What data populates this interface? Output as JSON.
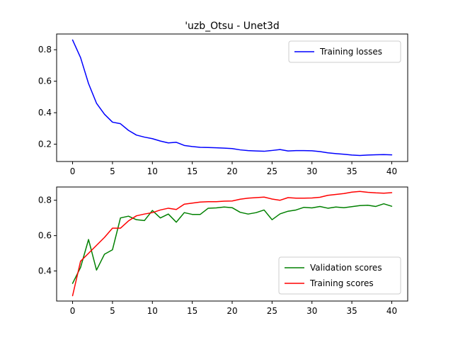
{
  "chart_data": [
    {
      "type": "line",
      "title": "'uzb_Otsu - Unet3d",
      "xlabel": "",
      "ylabel": "",
      "xlim": [
        -2,
        42
      ],
      "ylim": [
        0.09,
        0.9
      ],
      "xticks": [
        0,
        5,
        10,
        15,
        20,
        25,
        30,
        35,
        40
      ],
      "yticks": [
        0.2,
        0.4,
        0.6,
        0.8
      ],
      "ytick_labels": [
        "0.2",
        "0.4",
        "0.6",
        "0.8"
      ],
      "legend_position": "upper-right",
      "grid": false,
      "series": [
        {
          "name": "Training losses",
          "color": "#0000ff",
          "x": [
            0,
            1,
            2,
            3,
            4,
            5,
            6,
            7,
            8,
            9,
            10,
            11,
            12,
            13,
            14,
            15,
            16,
            17,
            18,
            19,
            20,
            21,
            22,
            23,
            24,
            25,
            26,
            27,
            28,
            29,
            30,
            31,
            32,
            33,
            34,
            35,
            36,
            37,
            38,
            39,
            40
          ],
          "values": [
            0.862,
            0.75,
            0.585,
            0.46,
            0.39,
            0.34,
            0.33,
            0.288,
            0.258,
            0.245,
            0.235,
            0.22,
            0.208,
            0.212,
            0.192,
            0.185,
            0.18,
            0.179,
            0.177,
            0.175,
            0.172,
            0.164,
            0.159,
            0.157,
            0.155,
            0.16,
            0.166,
            0.157,
            0.159,
            0.159,
            0.158,
            0.153,
            0.145,
            0.14,
            0.136,
            0.131,
            0.128,
            0.131,
            0.133,
            0.134,
            0.132
          ]
        }
      ]
    },
    {
      "type": "line",
      "title": "",
      "xlabel": "",
      "ylabel": "",
      "xlim": [
        -2,
        42
      ],
      "ylim": [
        0.23,
        0.875
      ],
      "xticks": [
        0,
        5,
        10,
        15,
        20,
        25,
        30,
        35,
        40
      ],
      "yticks": [
        0.4,
        0.6,
        0.8
      ],
      "ytick_labels": [
        "0.4",
        "0.6",
        "0.8"
      ],
      "legend_position": "lower-right",
      "grid": false,
      "series": [
        {
          "name": "Validation scores",
          "color": "#008000",
          "x": [
            0,
            1,
            2,
            3,
            4,
            5,
            6,
            7,
            8,
            9,
            10,
            11,
            12,
            13,
            14,
            15,
            16,
            17,
            18,
            19,
            20,
            21,
            22,
            23,
            24,
            25,
            26,
            27,
            28,
            29,
            30,
            31,
            32,
            33,
            34,
            35,
            36,
            37,
            38,
            39,
            40
          ],
          "values": [
            0.33,
            0.42,
            0.578,
            0.405,
            0.495,
            0.52,
            0.7,
            0.71,
            0.69,
            0.685,
            0.742,
            0.7,
            0.722,
            0.676,
            0.73,
            0.72,
            0.72,
            0.755,
            0.757,
            0.762,
            0.758,
            0.732,
            0.722,
            0.73,
            0.745,
            0.69,
            0.723,
            0.738,
            0.745,
            0.76,
            0.757,
            0.765,
            0.755,
            0.762,
            0.758,
            0.764,
            0.77,
            0.772,
            0.765,
            0.78,
            0.766
          ]
        },
        {
          "name": "Training scores",
          "color": "#ff0000",
          "x": [
            0,
            1,
            2,
            3,
            4,
            5,
            6,
            7,
            8,
            9,
            10,
            11,
            12,
            13,
            14,
            15,
            16,
            17,
            18,
            19,
            20,
            21,
            22,
            23,
            24,
            25,
            26,
            27,
            28,
            29,
            30,
            31,
            32,
            33,
            34,
            35,
            36,
            37,
            38,
            39,
            40
          ],
          "values": [
            0.26,
            0.455,
            0.5,
            0.545,
            0.59,
            0.642,
            0.642,
            0.683,
            0.712,
            0.722,
            0.73,
            0.745,
            0.755,
            0.748,
            0.778,
            0.784,
            0.79,
            0.792,
            0.792,
            0.795,
            0.796,
            0.806,
            0.812,
            0.815,
            0.818,
            0.807,
            0.8,
            0.815,
            0.812,
            0.812,
            0.813,
            0.817,
            0.828,
            0.833,
            0.838,
            0.846,
            0.85,
            0.845,
            0.842,
            0.84,
            0.843
          ]
        }
      ]
    }
  ]
}
